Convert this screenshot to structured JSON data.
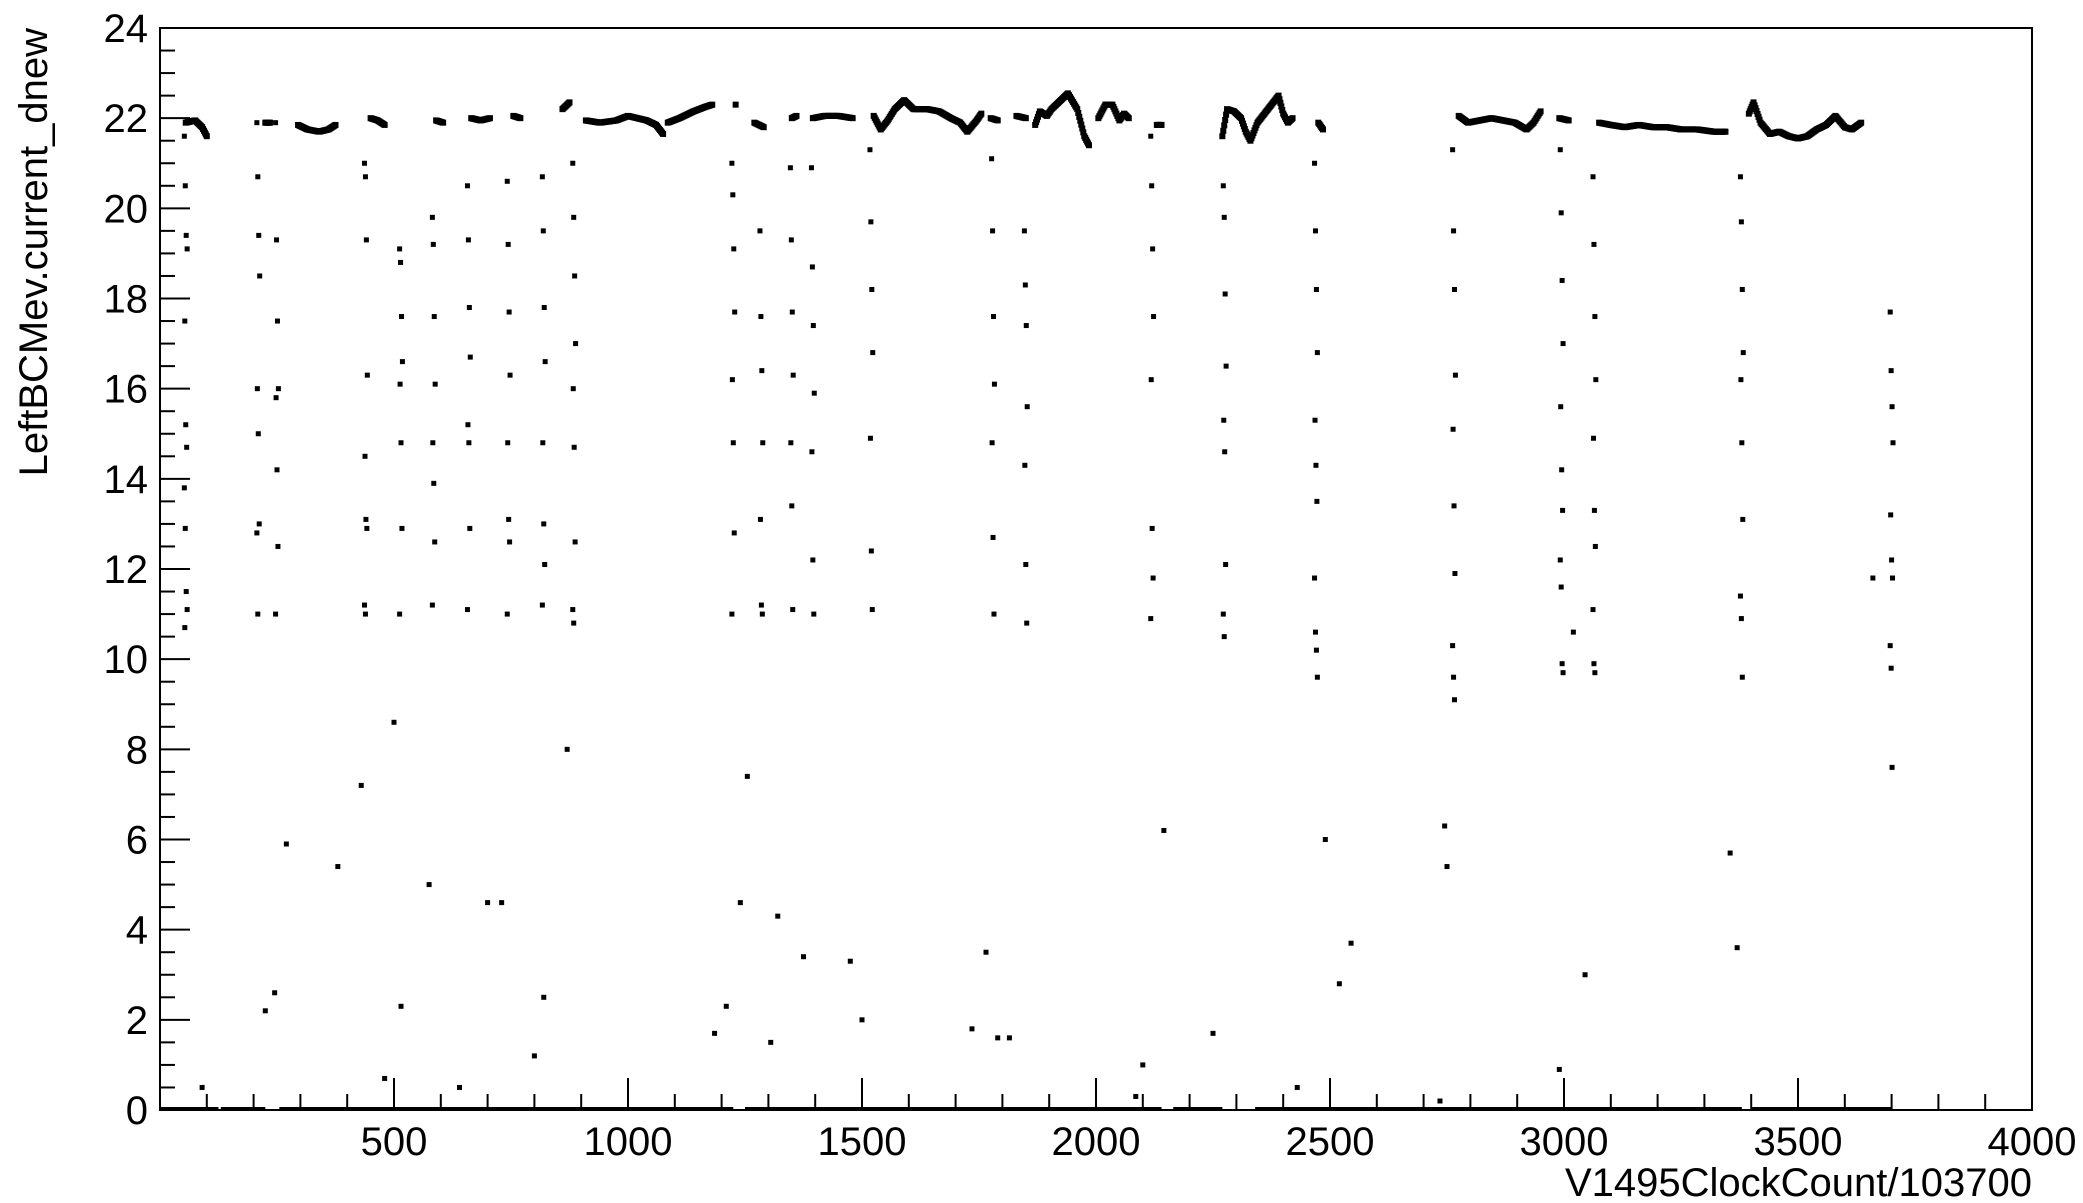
{
  "chart_data": {
    "type": "scatter",
    "xlabel": "V1495ClockCount/103700",
    "ylabel": "LeftBCMev.current_dnew",
    "xlim": [
      0,
      4000
    ],
    "ylim": [
      0,
      24
    ],
    "x_ticks": [
      500,
      1000,
      1500,
      2000,
      2500,
      3000,
      3500,
      4000
    ],
    "x_tick_labels": [
      "500",
      "1000",
      "1500",
      "2000",
      "2500",
      "3000",
      "3500",
      "4000"
    ],
    "y_ticks": [
      0,
      2,
      4,
      6,
      8,
      10,
      12,
      14,
      16,
      18,
      20,
      22,
      24
    ],
    "y_tick_labels": [
      "0",
      "2",
      "4",
      "6",
      "8",
      "10",
      "12",
      "14",
      "16",
      "18",
      "20",
      "22",
      "24"
    ],
    "grid": false,
    "marker_color": "#000000",
    "plateau_segments": [
      [
        [
          55,
          21.9
        ],
        [
          75,
          21.95
        ],
        [
          90,
          21.8
        ],
        [
          100,
          21.6
        ]
      ],
      [
        [
          225,
          21.9
        ],
        [
          235,
          21.9
        ]
      ],
      [
        [
          295,
          21.85
        ],
        [
          315,
          21.75
        ],
        [
          340,
          21.7
        ],
        [
          360,
          21.75
        ],
        [
          375,
          21.85
        ]
      ],
      [
        [
          450,
          22.0
        ],
        [
          465,
          21.95
        ],
        [
          480,
          21.85
        ]
      ],
      [
        [
          590,
          21.95
        ],
        [
          605,
          21.9
        ]
      ],
      [
        [
          665,
          22.0
        ],
        [
          685,
          21.95
        ],
        [
          705,
          22.0
        ]
      ],
      [
        [
          755,
          22.05
        ],
        [
          770,
          22.0
        ]
      ],
      [
        [
          860,
          22.2
        ],
        [
          875,
          22.35
        ]
      ],
      [
        [
          910,
          21.95
        ],
        [
          940,
          21.9
        ],
        [
          975,
          21.95
        ],
        [
          1000,
          22.05
        ],
        [
          1040,
          21.95
        ],
        [
          1060,
          21.85
        ],
        [
          1075,
          21.65
        ]
      ],
      [
        [
          1085,
          21.9
        ],
        [
          1110,
          22.0
        ],
        [
          1140,
          22.15
        ],
        [
          1165,
          22.25
        ],
        [
          1180,
          22.3
        ]
      ],
      [
        [
          1230,
          22.3
        ]
      ],
      [
        [
          1270,
          21.9
        ],
        [
          1290,
          21.8
        ]
      ],
      [
        [
          1350,
          22.0
        ],
        [
          1360,
          22.05
        ]
      ],
      [
        [
          1395,
          22.0
        ],
        [
          1420,
          22.05
        ],
        [
          1450,
          22.05
        ],
        [
          1480,
          22.0
        ]
      ],
      [
        [
          1525,
          22.05
        ],
        [
          1540,
          21.75
        ],
        [
          1555,
          21.95
        ],
        [
          1570,
          22.2
        ],
        [
          1590,
          22.4
        ],
        [
          1610,
          22.2
        ],
        [
          1640,
          22.2
        ],
        [
          1665,
          22.15
        ],
        [
          1690,
          22.0
        ],
        [
          1710,
          21.9
        ],
        [
          1725,
          21.7
        ],
        [
          1745,
          21.95
        ],
        [
          1755,
          22.1
        ]
      ],
      [
        [
          1775,
          22.0
        ],
        [
          1790,
          21.95
        ]
      ],
      [
        [
          1830,
          22.05
        ],
        [
          1850,
          22.0
        ]
      ],
      [
        [
          1870,
          21.85
        ],
        [
          1880,
          22.15
        ],
        [
          1895,
          22.05
        ],
        [
          1905,
          22.2
        ],
        [
          1925,
          22.4
        ],
        [
          1940,
          22.55
        ],
        [
          1960,
          22.2
        ],
        [
          1975,
          21.6
        ],
        [
          1985,
          21.4
        ]
      ],
      [
        [
          2005,
          22.0
        ],
        [
          2020,
          22.3
        ],
        [
          2035,
          22.3
        ],
        [
          2050,
          21.95
        ],
        [
          2060,
          22.1
        ],
        [
          2070,
          22.0
        ]
      ],
      [
        [
          2130,
          21.85
        ],
        [
          2140,
          21.85
        ]
      ],
      [
        [
          2270,
          21.6
        ],
        [
          2280,
          22.2
        ],
        [
          2295,
          22.15
        ],
        [
          2310,
          22.0
        ],
        [
          2320,
          21.7
        ],
        [
          2330,
          21.5
        ],
        [
          2345,
          21.9
        ],
        [
          2360,
          22.1
        ],
        [
          2375,
          22.3
        ],
        [
          2390,
          22.5
        ],
        [
          2400,
          22.1
        ],
        [
          2410,
          21.9
        ],
        [
          2420,
          22.0
        ]
      ],
      [
        [
          2475,
          21.9
        ],
        [
          2485,
          21.75
        ]
      ],
      [
        [
          2775,
          22.05
        ],
        [
          2795,
          21.9
        ],
        [
          2820,
          21.95
        ],
        [
          2845,
          22.0
        ],
        [
          2870,
          21.95
        ],
        [
          2895,
          21.9
        ],
        [
          2920,
          21.75
        ],
        [
          2935,
          21.9
        ],
        [
          2950,
          22.15
        ]
      ],
      [
        [
          2990,
          22.0
        ],
        [
          3010,
          21.95
        ]
      ],
      [
        [
          3075,
          21.9
        ],
        [
          3100,
          21.85
        ],
        [
          3130,
          21.8
        ],
        [
          3160,
          21.85
        ],
        [
          3190,
          21.8
        ],
        [
          3220,
          21.8
        ],
        [
          3250,
          21.75
        ],
        [
          3285,
          21.75
        ],
        [
          3320,
          21.7
        ],
        [
          3345,
          21.7
        ]
      ],
      [
        [
          3395,
          22.1
        ],
        [
          3405,
          22.35
        ],
        [
          3420,
          21.9
        ],
        [
          3440,
          21.65
        ],
        [
          3460,
          21.7
        ],
        [
          3480,
          21.6
        ],
        [
          3500,
          21.55
        ],
        [
          3520,
          21.6
        ],
        [
          3540,
          21.75
        ],
        [
          3560,
          21.85
        ],
        [
          3580,
          22.05
        ],
        [
          3600,
          21.8
        ],
        [
          3615,
          21.75
        ],
        [
          3635,
          21.9
        ]
      ]
    ],
    "drop_columns": [
      {
        "x": 55,
        "y": [
          21.6,
          20.5,
          19.4,
          19.1,
          17.5,
          15.2,
          14.7,
          13.8,
          12.9,
          11.5,
          11.1,
          10.7
        ]
      },
      {
        "x": 210,
        "y": [
          21.9,
          20.7,
          19.4,
          18.5,
          16.0,
          15.0,
          13.0,
          12.8,
          11.0
        ]
      },
      {
        "x": 250,
        "y": [
          21.9,
          19.3,
          17.5,
          16.0,
          15.8,
          14.2,
          12.5,
          11.0
        ]
      },
      {
        "x": 440,
        "y": [
          21.0,
          20.7,
          19.3,
          16.3,
          14.5,
          13.1,
          12.9,
          11.2,
          11.0
        ]
      },
      {
        "x": 515,
        "y": [
          19.1,
          18.8,
          17.6,
          16.6,
          16.1,
          14.8,
          12.9,
          11.0
        ]
      },
      {
        "x": 585,
        "y": [
          19.8,
          19.2,
          17.6,
          16.1,
          14.8,
          13.9,
          12.6,
          11.2
        ]
      },
      {
        "x": 660,
        "y": [
          20.5,
          19.3,
          17.8,
          16.7,
          15.2,
          14.8,
          12.9,
          11.1
        ]
      },
      {
        "x": 745,
        "y": [
          20.6,
          19.2,
          17.7,
          16.3,
          14.8,
          13.1,
          12.6,
          11.0
        ]
      },
      {
        "x": 820,
        "y": [
          20.7,
          19.5,
          17.8,
          16.6,
          14.8,
          13.0,
          12.1,
          11.2
        ]
      },
      {
        "x": 885,
        "y": [
          21.0,
          19.8,
          18.5,
          17.0,
          16.0,
          14.7,
          12.6,
          11.1,
          10.8
        ]
      },
      {
        "x": 1225,
        "y": [
          21.0,
          20.3,
          19.1,
          17.7,
          16.2,
          14.8,
          12.8,
          11.0
        ]
      },
      {
        "x": 1285,
        "y": [
          19.5,
          17.6,
          16.4,
          14.8,
          13.1,
          11.2,
          11.0
        ]
      },
      {
        "x": 1350,
        "y": [
          20.9,
          19.3,
          17.7,
          16.3,
          14.8,
          13.4,
          11.1
        ]
      },
      {
        "x": 1395,
        "y": [
          20.9,
          18.7,
          17.4,
          15.9,
          14.6,
          12.2,
          11.0
        ]
      },
      {
        "x": 1520,
        "y": [
          21.3,
          19.7,
          18.2,
          16.8,
          14.9,
          12.4,
          11.1
        ]
      },
      {
        "x": 1780,
        "y": [
          21.1,
          19.5,
          17.6,
          16.1,
          14.8,
          12.7,
          11.0
        ]
      },
      {
        "x": 1850,
        "y": [
          19.5,
          18.3,
          17.4,
          15.6,
          14.3,
          12.1,
          10.8
        ]
      },
      {
        "x": 2120,
        "y": [
          21.6,
          20.5,
          19.1,
          17.6,
          16.2,
          12.9,
          11.8,
          10.9
        ]
      },
      {
        "x": 2275,
        "y": [
          20.5,
          19.8,
          18.1,
          16.5,
          15.3,
          14.6,
          12.1,
          11.0,
          10.5
        ]
      },
      {
        "x": 2470,
        "y": [
          21.0,
          19.5,
          18.2,
          16.8,
          15.3,
          14.3,
          13.5,
          11.8,
          10.6,
          10.2,
          9.6
        ]
      },
      {
        "x": 2765,
        "y": [
          21.3,
          19.5,
          18.2,
          16.3,
          15.1,
          13.4,
          11.9,
          10.3,
          9.6,
          9.1
        ]
      },
      {
        "x": 2995,
        "y": [
          21.3,
          19.9,
          18.4,
          17.0,
          15.6,
          14.2,
          13.3,
          12.2,
          11.6,
          9.9,
          9.7
        ]
      },
      {
        "x": 3065,
        "y": [
          20.7,
          19.2,
          17.6,
          16.2,
          14.9,
          13.3,
          12.5,
          11.1,
          9.9,
          9.7
        ]
      },
      {
        "x": 3380,
        "y": [
          20.7,
          19.7,
          18.2,
          16.8,
          16.2,
          14.8,
          13.1,
          11.4,
          10.9,
          9.6
        ]
      },
      {
        "x": 3700,
        "y": [
          17.7,
          16.4,
          15.6,
          14.8,
          13.2,
          12.2,
          11.8,
          10.3,
          9.8,
          7.6
        ]
      }
    ],
    "scattered_points": [
      [
        90,
        0.5
      ],
      [
        225,
        2.2
      ],
      [
        245,
        2.6
      ],
      [
        270,
        5.9
      ],
      [
        380,
        5.4
      ],
      [
        430,
        7.2
      ],
      [
        480,
        0.7
      ],
      [
        500,
        8.6
      ],
      [
        515,
        2.3
      ],
      [
        575,
        5.0
      ],
      [
        640,
        0.5
      ],
      [
        700,
        4.6
      ],
      [
        730,
        4.6
      ],
      [
        800,
        1.2
      ],
      [
        820,
        2.5
      ],
      [
        870,
        8.0
      ],
      [
        1185,
        1.7
      ],
      [
        1210,
        2.3
      ],
      [
        1240,
        4.6
      ],
      [
        1255,
        7.4
      ],
      [
        1305,
        1.5
      ],
      [
        1320,
        4.3
      ],
      [
        1375,
        3.4
      ],
      [
        1475,
        3.3
      ],
      [
        1500,
        2.0
      ],
      [
        1735,
        1.8
      ],
      [
        1765,
        3.5
      ],
      [
        1790,
        1.6
      ],
      [
        1815,
        1.6
      ],
      [
        2085,
        0.3
      ],
      [
        2100,
        1.0
      ],
      [
        2145,
        6.2
      ],
      [
        2250,
        1.7
      ],
      [
        2430,
        0.5
      ],
      [
        2490,
        6.0
      ],
      [
        2520,
        2.8
      ],
      [
        2545,
        3.7
      ],
      [
        2735,
        0.2
      ],
      [
        2745,
        6.3
      ],
      [
        2750,
        5.4
      ],
      [
        2990,
        0.9
      ],
      [
        3020,
        10.6
      ],
      [
        3045,
        3.0
      ],
      [
        3355,
        5.7
      ],
      [
        3370,
        3.6
      ],
      [
        3660,
        11.8
      ]
    ],
    "zero_baseline_ranges": [
      [
        0,
        125
      ],
      [
        130,
        225
      ],
      [
        255,
        1225
      ],
      [
        1250,
        2140
      ],
      [
        2165,
        2270
      ],
      [
        2340,
        3380
      ],
      [
        3400,
        3700
      ]
    ]
  }
}
